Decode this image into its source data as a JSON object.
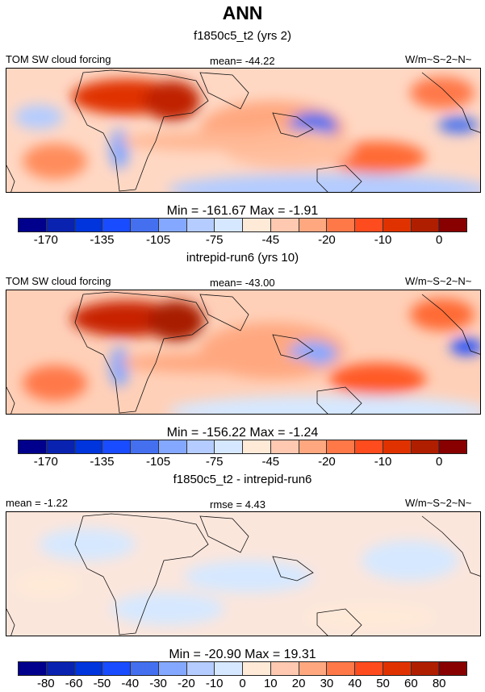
{
  "title": "ANN",
  "panels": [
    {
      "subtitle": "f1850c5_t2 (yrs 2)",
      "left": "TOM SW cloud forcing",
      "center": "mean= -44.22",
      "right": "W/m~S~2~N~",
      "minmax": "Min = -161.67 Max =  -1.91",
      "ticks": [
        "-170",
        "-135",
        "-105",
        "-75",
        "-45",
        "-20",
        "-10",
        "0"
      ]
    },
    {
      "subtitle": "intrepid-run6 (yrs 10)",
      "left": "TOM SW cloud forcing",
      "center": "mean= -43.00",
      "right": "W/m~S~2~N~",
      "minmax": "Min = -156.22 Max =  -1.24",
      "ticks": [
        "-170",
        "-135",
        "-105",
        "-75",
        "-45",
        "-20",
        "-10",
        "0"
      ]
    },
    {
      "subtitle": "f1850c5_t2 - intrepid-run6",
      "left": "mean =  -1.22",
      "center": "rmse =  4.43",
      "right": "W/m~S~2~N~",
      "minmax": "Min = -20.90 Max =  19.31",
      "ticks": [
        "-80",
        "-60",
        "-50",
        "-40",
        "-30",
        "-20",
        "-10",
        "0",
        "10",
        "20",
        "30",
        "40",
        "50",
        "60",
        "80"
      ]
    }
  ],
  "colorbar_colors": [
    "#00008c",
    "#0a22b0",
    "#0034dc",
    "#1a4cff",
    "#4470f0",
    "#84a8ff",
    "#b4ccff",
    "#d6e8ff",
    "#ffead8",
    "#ffc8b0",
    "#ffa880",
    "#ff7848",
    "#ff4c1e",
    "#e03200",
    "#b01e00",
    "#880000"
  ]
}
